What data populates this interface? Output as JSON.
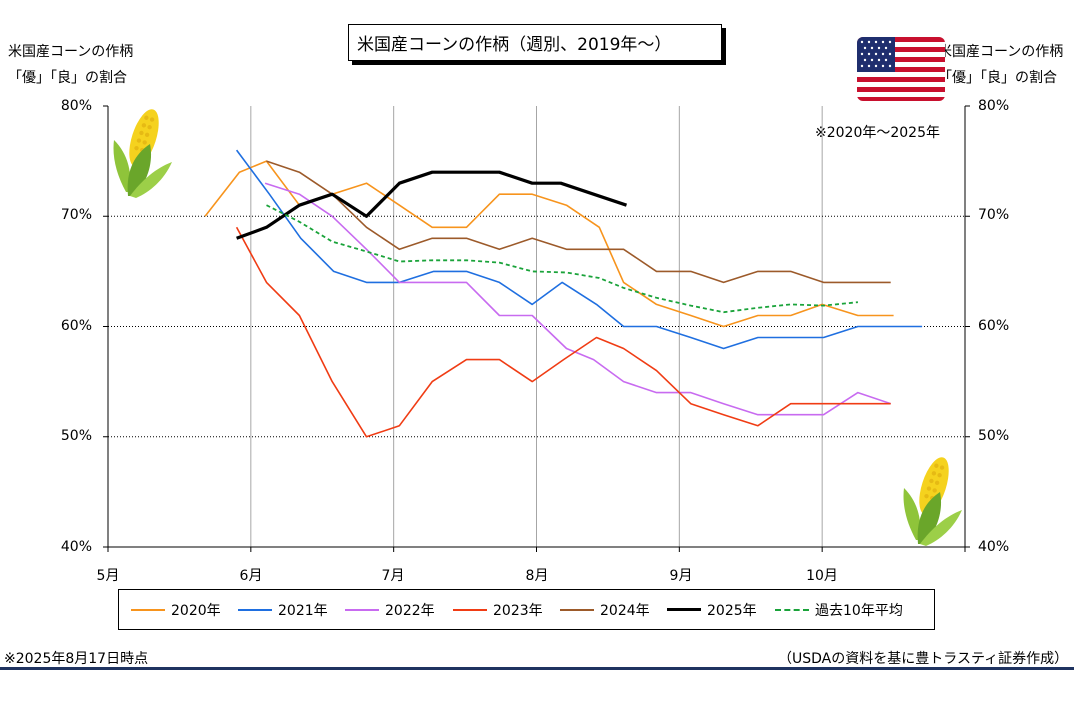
{
  "title": "米国産コーンの作柄（週別、2019年～）",
  "left_axis_title_line1": "米国産コーンの作柄",
  "left_axis_title_line2": "「優」「良」の割合",
  "right_axis_title_line1": "米国産コーンの作柄",
  "right_axis_title_line2": "「優」「良」の割合",
  "range_note": "※2020年～2025年",
  "date_note": "※2025年8月17日時点",
  "source_note": "（USDAの資料を基に豊トラスティ証券作成）",
  "y_ticks": [
    "80%",
    "70%",
    "60%",
    "50%",
    "40%"
  ],
  "x_ticks": [
    "5月",
    "6月",
    "7月",
    "8月",
    "9月",
    "10月"
  ],
  "icons": [
    "corn-icon",
    "corn-icon",
    "us-flag-icon"
  ],
  "chart_data": {
    "type": "line",
    "title": "米国産コーンの作柄（週別、2019年～）",
    "ylabel": "米国産コーンの作柄「優」「良」の割合",
    "xlabel": "",
    "x_unit": "month",
    "xlim": [
      5,
      11
    ],
    "ylim": [
      40,
      80
    ],
    "y_ticks": [
      40,
      50,
      60,
      70,
      80
    ],
    "x_tick_labels": [
      "5月",
      "6月",
      "7月",
      "8月",
      "9月",
      "10月"
    ],
    "grid": "horizontal dotted + vertical at month boundaries",
    "legend_position": "bottom",
    "series": [
      {
        "name": "2020年",
        "color": "#f7941d",
        "dash": false,
        "width": 1.6,
        "x": [
          5.68,
          5.92,
          6.11,
          6.34,
          6.57,
          6.81,
          7.04,
          7.27,
          7.51,
          7.74,
          7.97,
          8.21,
          8.44,
          8.61,
          8.84,
          9.08,
          9.31,
          9.55,
          9.78,
          10.0,
          10.25,
          10.5
        ],
        "y": [
          70,
          74,
          75,
          71,
          72,
          73,
          71,
          69,
          69,
          72,
          72,
          71,
          69,
          64,
          62,
          61,
          60,
          61,
          61,
          62,
          61,
          61
        ]
      },
      {
        "name": "2021年",
        "color": "#1f6fe0",
        "dash": false,
        "width": 1.6,
        "x": [
          5.9,
          6.13,
          6.35,
          6.58,
          6.81,
          7.04,
          7.28,
          7.51,
          7.74,
          7.97,
          8.18,
          8.42,
          8.61,
          8.84,
          9.08,
          9.31,
          9.55,
          9.78,
          10.01,
          10.25,
          10.48,
          10.7
        ],
        "y": [
          76,
          72,
          68,
          65,
          64,
          64,
          65,
          65,
          64,
          62,
          64,
          62,
          60,
          60,
          59,
          58,
          59,
          59,
          59,
          60,
          60,
          60
        ]
      },
      {
        "name": "2022年",
        "color": "#c86bf0",
        "dash": false,
        "width": 1.6,
        "x": [
          6.1,
          6.34,
          6.57,
          6.81,
          7.04,
          7.27,
          7.51,
          7.74,
          7.97,
          8.21,
          8.4,
          8.61,
          8.84,
          9.08,
          9.31,
          9.55,
          9.78,
          10.01,
          10.25,
          10.48
        ],
        "y": [
          73,
          72,
          70,
          67,
          64,
          64,
          64,
          61,
          61,
          58,
          57,
          55,
          54,
          54,
          53,
          52,
          52,
          52,
          54,
          53
        ]
      },
      {
        "name": "2023年",
        "color": "#f03c14",
        "dash": false,
        "width": 1.6,
        "x": [
          5.9,
          6.11,
          6.34,
          6.57,
          6.81,
          7.04,
          7.27,
          7.51,
          7.74,
          7.97,
          8.19,
          8.42,
          8.61,
          8.84,
          9.08,
          9.31,
          9.55,
          9.78,
          10.01,
          10.25,
          10.48
        ],
        "y": [
          69,
          64,
          61,
          55,
          50,
          51,
          55,
          57,
          57,
          55,
          57,
          59,
          58,
          56,
          53,
          52,
          51,
          53,
          53,
          53,
          53
        ]
      },
      {
        "name": "2024年",
        "color": "#9c5a2a",
        "dash": false,
        "width": 1.6,
        "x": [
          6.11,
          6.34,
          6.57,
          6.81,
          7.04,
          7.27,
          7.51,
          7.74,
          7.97,
          8.21,
          8.44,
          8.61,
          8.84,
          9.08,
          9.31,
          9.55,
          9.78,
          10.01,
          10.25,
          10.48
        ],
        "y": [
          75,
          74,
          72,
          69,
          67,
          68,
          68,
          67,
          68,
          67,
          67,
          67,
          65,
          65,
          64,
          65,
          65,
          64,
          64,
          64
        ]
      },
      {
        "name": "2025年",
        "color": "#000000",
        "dash": false,
        "width": 3.2,
        "x": [
          5.9,
          6.11,
          6.34,
          6.57,
          6.81,
          7.04,
          7.27,
          7.51,
          7.74,
          7.97,
          8.17,
          8.4,
          8.63
        ],
        "y": [
          68,
          69,
          71,
          72,
          70,
          73,
          74,
          74,
          74,
          73,
          73,
          72,
          71
        ]
      },
      {
        "name": "過去10年平均",
        "color": "#1aa33a",
        "dash": true,
        "width": 1.8,
        "x": [
          6.11,
          6.34,
          6.57,
          6.81,
          7.04,
          7.27,
          7.51,
          7.74,
          7.97,
          8.21,
          8.44,
          8.61,
          8.84,
          9.08,
          9.31,
          9.55,
          9.78,
          10.01,
          10.25
        ],
        "y": [
          71,
          69.5,
          67.7,
          66.8,
          65.9,
          66,
          66,
          65.8,
          65,
          64.9,
          64.4,
          63.5,
          62.6,
          61.9,
          61.3,
          61.7,
          62,
          61.9,
          62.2
        ]
      }
    ]
  }
}
